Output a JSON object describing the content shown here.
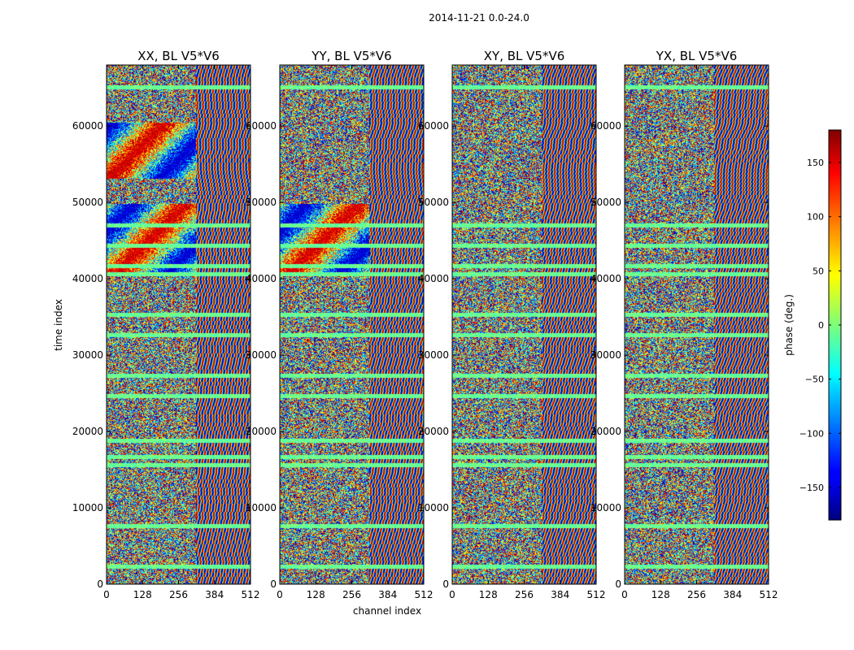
{
  "chart_data": {
    "type": "heatmap",
    "title": "2014-11-21 0.0-24.0",
    "xlabel": "channel index",
    "ylabel": "time index",
    "xlim": [
      0,
      512
    ],
    "ylim": [
      0,
      68000
    ],
    "xticks": [
      "0",
      "128",
      "256",
      "384",
      "512"
    ],
    "xtick_values": [
      0,
      128,
      256,
      384,
      512
    ],
    "yticks": [
      "0",
      "10000",
      "20000",
      "30000",
      "40000",
      "50000",
      "60000"
    ],
    "ytick_values": [
      0,
      10000,
      20000,
      30000,
      40000,
      50000,
      60000
    ],
    "panels": [
      {
        "title": "XX, BL V5*V6",
        "show_ylabel": true
      },
      {
        "title": "YY, BL V5*V6",
        "show_ylabel": false
      },
      {
        "title": "XY, BL V5*V6",
        "show_ylabel": false
      },
      {
        "title": "YX, BL V5*V6",
        "show_ylabel": false
      }
    ],
    "colorbar": {
      "label": "phase (deg.)",
      "colormap": "jet",
      "range": [
        -180,
        180
      ],
      "ticks": [
        "−150",
        "−100",
        "−50",
        "0",
        "50",
        "100",
        "150"
      ],
      "tick_values": [
        -150,
        -100,
        -50,
        0,
        50,
        100,
        150
      ]
    }
  }
}
